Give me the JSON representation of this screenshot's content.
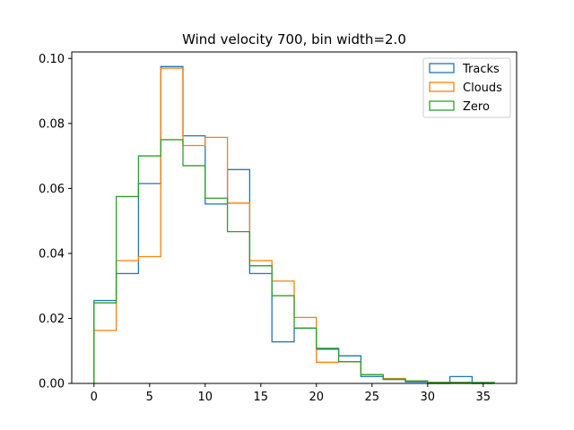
{
  "chart_data": {
    "type": "histogram-step",
    "title": "Wind velocity 700, bin width=2.0",
    "xlabel": "",
    "ylabel": "",
    "xlim": [
      -2,
      38
    ],
    "ylim": [
      0,
      0.102
    ],
    "xticks": [
      0,
      5,
      10,
      15,
      20,
      25,
      30,
      35
    ],
    "xtick_labels": [
      "0",
      "5",
      "10",
      "15",
      "20",
      "25",
      "30",
      "35"
    ],
    "yticks": [
      0.0,
      0.02,
      0.04,
      0.06,
      0.08,
      0.1
    ],
    "ytick_labels": [
      "0.00",
      "0.02",
      "0.04",
      "0.06",
      "0.08",
      "0.10"
    ],
    "bin_edges": [
      0,
      2,
      4,
      6,
      8,
      10,
      12,
      14,
      16,
      18,
      20,
      22,
      24,
      26,
      28,
      30,
      32,
      34,
      36
    ],
    "grid": false,
    "legend_position": "top-right",
    "series": [
      {
        "name": "Tracks",
        "color": "#1f77b4",
        "values": [
          0.0255,
          0.0338,
          0.0615,
          0.0975,
          0.0762,
          0.0552,
          0.0658,
          0.0338,
          0.0128,
          0.017,
          0.0105,
          0.0085,
          0.0021,
          0.0012,
          0.0005,
          0.0,
          0.0021,
          0.0
        ]
      },
      {
        "name": "Clouds",
        "color": "#ff7f0e",
        "values": [
          0.0163,
          0.0378,
          0.039,
          0.097,
          0.0732,
          0.0757,
          0.0555,
          0.0378,
          0.0315,
          0.0203,
          0.0065,
          0.0067,
          0.0027,
          0.0015,
          0.0008,
          0.0003,
          0.0003,
          0.0
        ]
      },
      {
        "name": "Zero",
        "color": "#2ca02c",
        "values": [
          0.0248,
          0.0575,
          0.07,
          0.075,
          0.067,
          0.057,
          0.0467,
          0.0362,
          0.027,
          0.017,
          0.0108,
          0.0067,
          0.0027,
          0.0013,
          0.0008,
          0.0003,
          0.0003,
          0.0003
        ]
      }
    ]
  }
}
